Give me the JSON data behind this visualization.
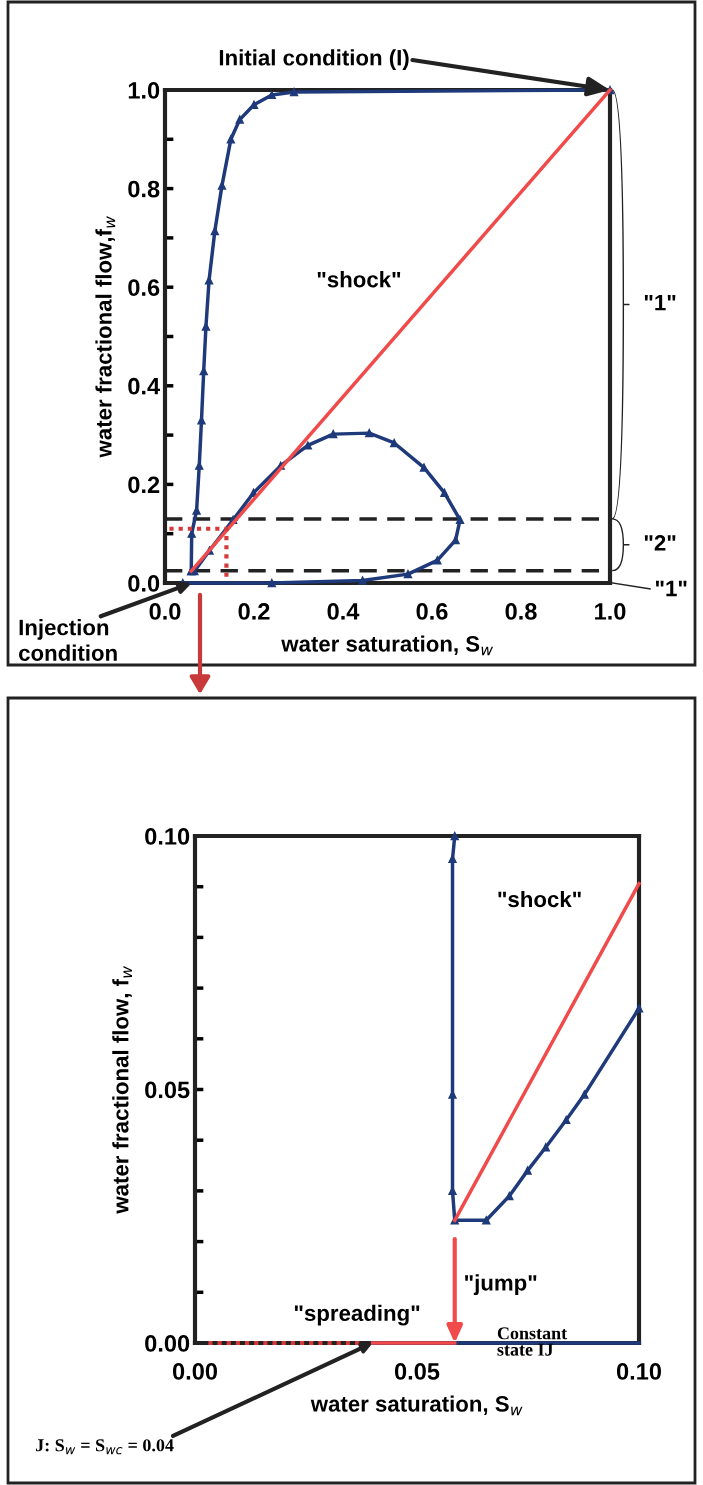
{
  "chart_data": [
    {
      "type": "line",
      "xlabel": "water saturation, S$_{w}$",
      "ylabel": "water fractional flow,f$_{w}$",
      "xlim": [
        0,
        1
      ],
      "ylim": [
        0,
        1
      ],
      "xticks": [
        {
          "value": 0,
          "label": "0.0"
        },
        {
          "value": 0.2,
          "label": "0.2"
        },
        {
          "value": 0.4,
          "label": "0.4"
        },
        {
          "value": 0.6,
          "label": "0.6"
        },
        {
          "value": 0.8,
          "label": "0.8"
        },
        {
          "value": 1,
          "label": "1.0"
        }
      ],
      "yticks": [
        {
          "value": 0,
          "label": "0.0"
        },
        {
          "value": 0.1,
          "label": null
        },
        {
          "value": 0.2,
          "label": "0.2"
        },
        {
          "value": 0.3,
          "label": null
        },
        {
          "value": 0.4,
          "label": "0.4"
        },
        {
          "value": 0.5,
          "label": null
        },
        {
          "value": 0.6,
          "label": "0.6"
        },
        {
          "value": 0.7,
          "label": null
        },
        {
          "value": 0.8,
          "label": "0.8"
        },
        {
          "value": 0.9,
          "label": null
        },
        {
          "value": 1,
          "label": "1.0"
        }
      ],
      "grid": false,
      "legend": false,
      "series": [
        {
          "color": "#1f3a7a",
          "marker": "triangle",
          "line_style": "solid",
          "x": [
            1,
            0.29,
            0.24,
            0.2,
            0.168,
            0.148,
            0.128,
            0.112,
            0.099,
            0.092,
            0.087,
            0.082,
            0.077,
            0.071,
            0.06,
            0.059,
            0.059,
            0.066,
            0.1,
            0.153,
            0.199,
            0.26,
            0.321,
            0.378,
            0.459,
            0.515,
            0.582,
            0.628,
            0.663,
            0.653,
            0.612,
            0.546,
            0.444,
            0.24,
            0.04
          ],
          "values": [
            1,
            0.996,
            0.99,
            0.97,
            0.94,
            0.9,
            0.806,
            0.714,
            0.614,
            0.52,
            0.43,
            0.33,
            0.238,
            0.147,
            0.1,
            0.024,
            0.024,
            0.024,
            0.066,
            0.128,
            0.183,
            0.238,
            0.279,
            0.302,
            0.304,
            0.284,
            0.234,
            0.183,
            0.128,
            0.087,
            0.046,
            0.018,
            0.005,
            0,
            0
          ]
        },
        {
          "color": "#f04a4a",
          "marker": "none",
          "line_style": "solid",
          "x": [
            0.059,
            1
          ],
          "values": [
            0.024,
            1
          ]
        },
        {
          "color": "#d43a3a",
          "marker": "none",
          "line_style": "dotted",
          "x": [
            0.01,
            0.138,
            0.138
          ],
          "values": [
            0.11,
            0.11,
            0.01
          ]
        }
      ],
      "ref_lines": [
        {
          "axis": "y",
          "value": 0.13,
          "label": null,
          "color": "#222222",
          "line_style": "dashed"
        },
        {
          "axis": "y",
          "value": 0.025,
          "label": null,
          "color": "#222222",
          "line_style": "dashed"
        }
      ],
      "annotations": [
        {
          "text": "Initial condition (I)",
          "x": 1,
          "y": 1
        },
        {
          "text": "Injection condition",
          "x": 0.06,
          "y": 0
        },
        "\"shock\"",
        "\"1\"",
        "\"2\"",
        "\"1\""
      ]
    },
    {
      "type": "line",
      "xlabel": "water saturation, S$_{w}$",
      "ylabel": "water fractional flow, f$_{w}$",
      "xlim": [
        0,
        0.1
      ],
      "ylim": [
        0,
        0.1
      ],
      "xticks": [
        {
          "value": 0,
          "label": "0.00"
        },
        {
          "value": 0.05,
          "label": "0.05"
        },
        {
          "value": 0.1,
          "label": "0.10"
        }
      ],
      "yticks": [
        {
          "value": 0,
          "label": "0.00"
        },
        {
          "value": 0.01,
          "label": null
        },
        {
          "value": 0.02,
          "label": null
        },
        {
          "value": 0.03,
          "label": null
        },
        {
          "value": 0.04,
          "label": null
        },
        {
          "value": 0.05,
          "label": "0.05"
        },
        {
          "value": 0.06,
          "label": null
        },
        {
          "value": 0.07,
          "label": null
        },
        {
          "value": 0.08,
          "label": null
        },
        {
          "value": 0.09,
          "label": null
        },
        {
          "value": 0.1,
          "label": "0.10"
        }
      ],
      "grid": false,
      "legend": false,
      "series": [
        {
          "color": "#1f3a7a",
          "marker": "triangle",
          "line_style": "solid",
          "x": [
            0.0585,
            0.058,
            0.058,
            0.058,
            0.0585,
            0.0656,
            0.0708,
            0.0749,
            0.079,
            0.0836,
            0.0877,
            0.1
          ],
          "values": [
            0.1,
            0.0955,
            0.049,
            0.03,
            0.0242,
            0.0242,
            0.029,
            0.034,
            0.0386,
            0.044,
            0.049,
            0.066
          ]
        },
        {
          "color": "#1f3a7a",
          "marker": "none",
          "line_style": "solid",
          "x": [
            0.04,
            0.1
          ],
          "values": [
            0,
            0
          ]
        },
        {
          "color": "#f04a4a",
          "marker": "none",
          "line_style": "solid",
          "x": [
            0.0585,
            0.1
          ],
          "values": [
            0.0242,
            0.0906
          ]
        },
        {
          "color": "#f04a4a",
          "marker": "none",
          "line_style": "solid",
          "x": [
            0.04,
            0.0585
          ],
          "values": [
            0,
            0
          ]
        },
        {
          "color": "#d43a3a",
          "marker": "none",
          "line_style": "dotted",
          "x": [
            0.003,
            0.038
          ],
          "values": [
            0,
            0
          ]
        }
      ],
      "annotations": [
        "\"shock\"",
        {
          "text": "\"jump\"",
          "x": 0.0585,
          "y": 0
        },
        "\"spreading\"",
        "Constant\nstate IJ",
        {
          "text": "J: S$_{w}$ = S$_{wc}$ = 0.04",
          "x": 0.04,
          "y": 0
        }
      ]
    }
  ]
}
